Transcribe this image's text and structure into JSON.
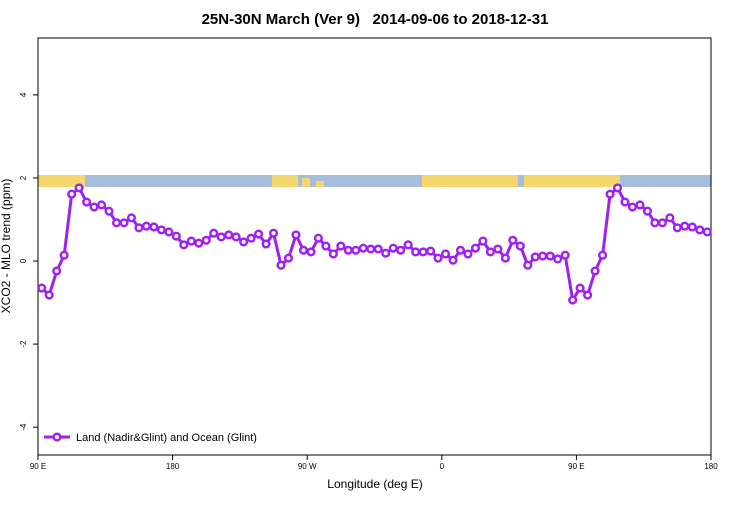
{
  "chart_data": {
    "type": "line",
    "title": "25N-30N March (Ver 9)   2014-09-06 to 2018-12-31",
    "x_label": "Longitude (deg E)",
    "y_label": "XCO2 - MLO trend (ppm)",
    "xlim": [
      90,
      540
    ],
    "ylim": [
      -4.67,
      5.37
    ],
    "xticks": [
      {
        "value": 90,
        "label": "90 E"
      },
      180,
      {
        "value": 270,
        "label": "90 W"
      },
      {
        "value": 360,
        "label": "0"
      },
      {
        "value": 450,
        "label": "90 E"
      },
      {
        "value": 540,
        "label": "180"
      }
    ],
    "yticks": [
      -4,
      -2,
      0,
      2,
      4
    ],
    "legend": "bottom-left",
    "x": [
      92.5,
      97.5,
      102.5,
      107.5,
      112.5,
      117.5,
      122.5,
      127.5,
      132.5,
      137.5,
      142.5,
      147.5,
      152.5,
      157.5,
      162.5,
      167.5,
      172.5,
      177.5,
      182.5,
      187.5,
      192.5,
      197.5,
      202.5,
      207.5,
      212.5,
      217.5,
      222.5,
      227.5,
      232.5,
      237.5,
      242.5,
      247.5,
      252.5,
      257.5,
      262.5,
      267.5,
      272.5,
      277.5,
      282.5,
      287.5,
      292.5,
      297.5,
      302.5,
      307.5,
      312.5,
      317.5,
      322.5,
      327.5,
      332.5,
      337.5,
      342.5,
      347.5,
      352.5,
      357.5,
      362.5,
      367.5,
      372.5,
      377.5,
      382.5,
      387.5,
      392.5,
      397.5,
      402.5,
      407.5,
      412.5,
      417.5,
      422.5,
      427.5,
      432.5,
      437.5,
      442.5,
      447.5,
      452.5,
      457.5,
      462.5,
      467.5,
      472.5,
      477.5,
      482.5,
      487.5,
      492.5,
      497.5,
      502.5,
      507.5,
      512.5,
      517.5,
      522.5,
      527.5,
      532.5,
      537.5
    ],
    "series": [
      {
        "name": "Land (Nadir&Glint) and Ocean (Glint)",
        "color": "#a020f0",
        "values": [
          -0.65,
          -0.82,
          -0.24,
          0.14,
          1.61,
          1.76,
          1.42,
          1.3,
          1.35,
          1.2,
          0.92,
          0.92,
          1.04,
          0.8,
          0.84,
          0.82,
          0.75,
          0.7,
          0.6,
          0.39,
          0.48,
          0.43,
          0.5,
          0.67,
          0.58,
          0.63,
          0.58,
          0.46,
          0.55,
          0.65,
          0.41,
          0.67,
          -0.1,
          0.07,
          0.63,
          0.26,
          0.22,
          0.55,
          0.36,
          0.17,
          0.36,
          0.26,
          0.26,
          0.31,
          0.29,
          0.29,
          0.19,
          0.31,
          0.26,
          0.39,
          0.22,
          0.22,
          0.24,
          0.07,
          0.17,
          0.02,
          0.26,
          0.17,
          0.31,
          0.48,
          0.22,
          0.29,
          0.07,
          0.5,
          0.36,
          -0.1,
          0.1,
          0.12,
          0.12,
          0.05,
          0.14,
          -0.94,
          -0.65,
          -0.82,
          -0.24,
          0.14,
          1.61,
          1.76,
          1.42,
          1.3,
          1.35,
          1.2,
          0.92,
          0.92,
          1.04,
          0.8,
          0.84,
          0.82,
          0.75,
          0.7
        ]
      }
    ]
  }
}
